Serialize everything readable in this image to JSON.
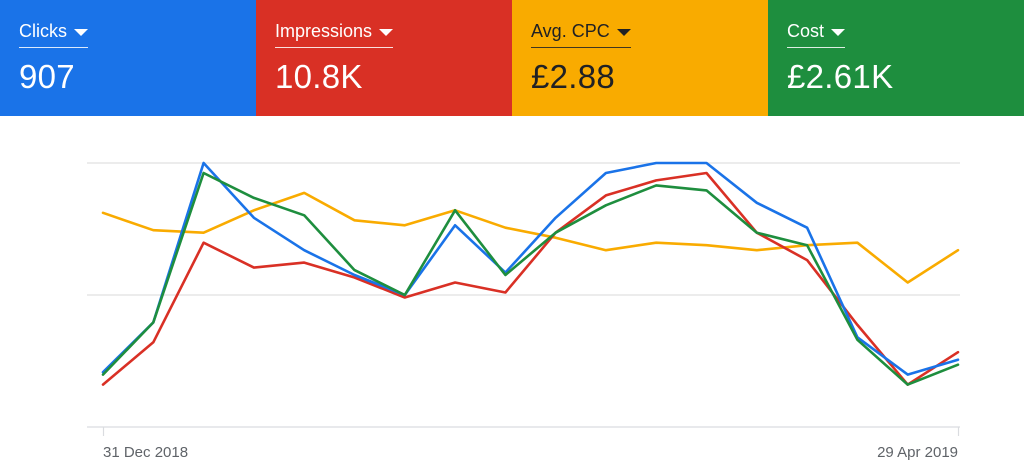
{
  "metrics": [
    {
      "id": "clicks",
      "label": "Clicks",
      "value": "907",
      "color": "#1a73e8",
      "text": "light"
    },
    {
      "id": "impressions",
      "label": "Impressions",
      "value": "10.8K",
      "color": "#d93025",
      "text": "light"
    },
    {
      "id": "avg-cpc",
      "label": "Avg. CPC",
      "value": "£2.88",
      "color": "#f9ab00",
      "text": "dark"
    },
    {
      "id": "cost",
      "label": "Cost",
      "value": "£2.61K",
      "color": "#1e8e3e",
      "text": "light"
    }
  ],
  "chart_data": {
    "type": "line",
    "x_tick_labels": [
      "31 Dec 2018",
      "29 Apr 2019"
    ],
    "x": [
      "31 Dec 2018",
      "7 Jan 2019",
      "14 Jan 2019",
      "21 Jan 2019",
      "28 Jan 2019",
      "4 Feb 2019",
      "11 Feb 2019",
      "18 Feb 2019",
      "25 Feb 2019",
      "4 Mar 2019",
      "11 Mar 2019",
      "18 Mar 2019",
      "25 Mar 2019",
      "1 Apr 2019",
      "8 Apr 2019",
      "15 Apr 2019",
      "22 Apr 2019",
      "29 Apr 2019"
    ],
    "ylim": [
      0,
      100
    ],
    "grid": true,
    "series": [
      {
        "metric": "clicks",
        "color": "#1a73e8",
        "values": [
          16,
          36,
          100,
          78,
          65,
          55,
          47,
          75,
          56,
          78,
          96,
          100,
          100,
          84,
          74,
          30,
          15,
          21
        ]
      },
      {
        "metric": "impressions",
        "color": "#d93025",
        "values": [
          11,
          28,
          68,
          58,
          60,
          54,
          46,
          52,
          48,
          72,
          87,
          93,
          96,
          72,
          61,
          35,
          11,
          24
        ]
      },
      {
        "metric": "avg-cpc",
        "color": "#f9ab00",
        "values": [
          80,
          73,
          72,
          81,
          88,
          77,
          75,
          81,
          74,
          70,
          65,
          68,
          67,
          65,
          67,
          68,
          52,
          65
        ]
      },
      {
        "metric": "cost",
        "color": "#1e8e3e",
        "values": [
          15,
          36,
          96,
          86,
          79,
          57,
          47,
          81,
          55,
          72,
          83,
          91,
          89,
          72,
          67,
          29,
          11,
          19
        ]
      }
    ]
  }
}
